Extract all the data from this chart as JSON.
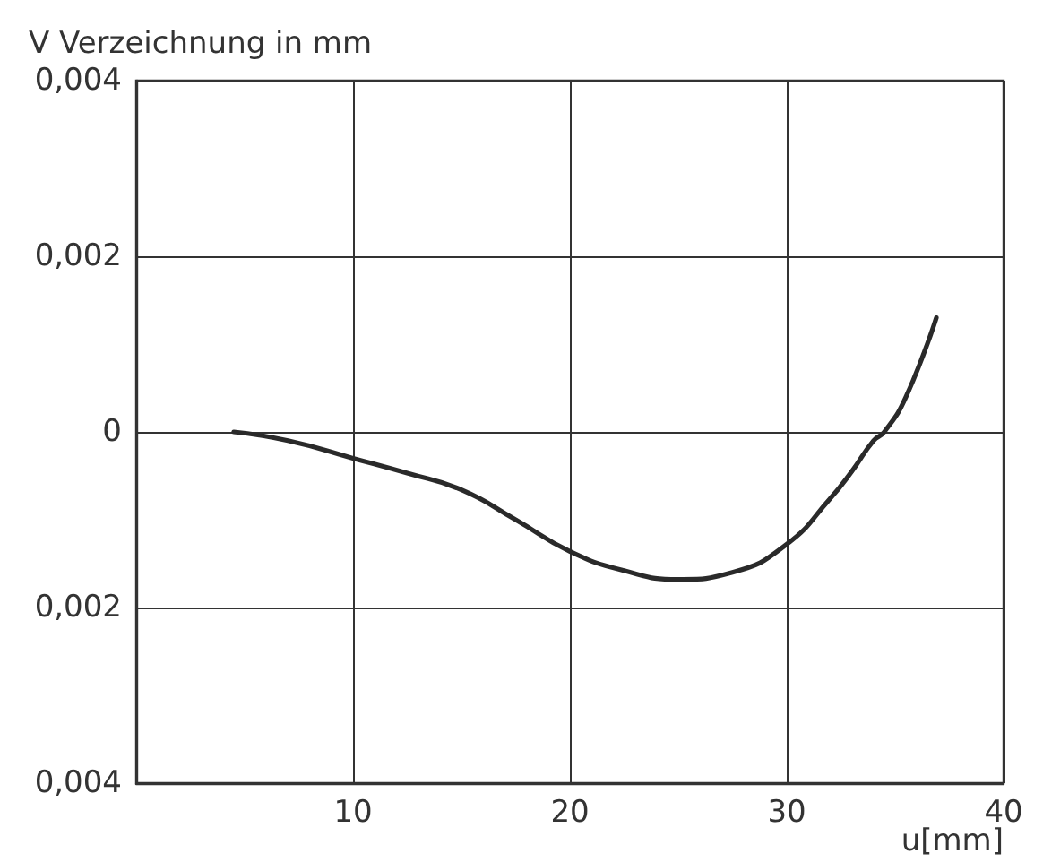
{
  "chart_data": {
    "type": "line",
    "ylabel": "V Verzeichnung in mm",
    "xlabel": "u[mm]",
    "x": [
      4.5,
      7,
      10,
      12.5,
      15,
      17.5,
      20,
      22.5,
      25,
      27.5,
      30,
      32,
      33,
      34,
      34.5,
      35.5,
      36.9
    ],
    "series": [
      {
        "color": "#2a2a2a",
        "values": [
          0,
          -0.0001,
          -0.0003,
          -0.00047,
          -0.00066,
          -0.001,
          -0.00136,
          -0.00158,
          -0.00168,
          -0.0016,
          -0.00128,
          -0.00076,
          -0.00045,
          -0.0001,
          0,
          0.0004,
          0.0013
        ]
      }
    ],
    "xlim": [
      0,
      40
    ],
    "xticks": [
      10,
      20,
      30,
      40
    ],
    "ylim": [
      -0.004,
      0.004
    ],
    "yticks": [
      {
        "value": -0.004,
        "label": "0,004"
      },
      {
        "value": -0.002,
        "label": "0,002"
      },
      {
        "value": 0,
        "label": "0"
      },
      {
        "value": 0.002,
        "label": "0,002"
      },
      {
        "value": 0.004,
        "label": "0,004"
      }
    ],
    "grid": true,
    "marker": "none",
    "line_style": "solid"
  }
}
